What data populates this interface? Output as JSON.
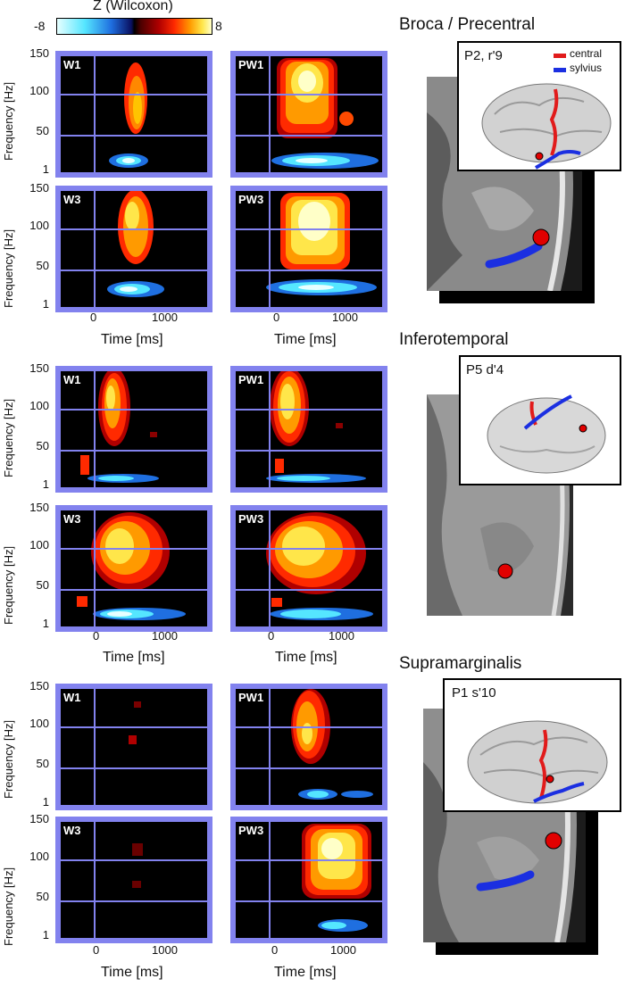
{
  "colorbar": {
    "title": "Z (Wilcoxon)",
    "min_label": "-8",
    "max_label": "8"
  },
  "axes": {
    "ylabel": "Frequency [Hz]",
    "xlabel": "Time [ms]",
    "yticks": [
      "150",
      "100",
      "50",
      "1"
    ],
    "xticks": [
      "0",
      "1000"
    ]
  },
  "regions": [
    {
      "title": "Broca / Precentral",
      "inset_label": "P2, r'9",
      "legend": [
        {
          "label": "central",
          "color": "#e11b1b"
        },
        {
          "label": "sylvius",
          "color": "#1b2fe1"
        }
      ],
      "panels": [
        "W1",
        "PW1",
        "W3",
        "PW3"
      ]
    },
    {
      "title": "Inferotemporal",
      "inset_label": "P5 d'4",
      "legend": [],
      "panels": [
        "W1",
        "PW1",
        "W3",
        "PW3"
      ]
    },
    {
      "title": "Supramarginalis",
      "inset_label": "P1 s'10",
      "legend": [],
      "panels": [
        "W1",
        "PW1",
        "W3",
        "PW3"
      ]
    }
  ]
}
